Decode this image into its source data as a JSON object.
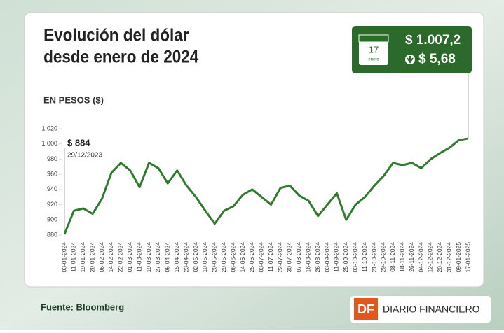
{
  "chart_data": {
    "type": "line",
    "title_lines": [
      "Evolución del dólar",
      "desde enero de 2024"
    ],
    "y_label": "EN PESOS ($)",
    "categories": [
      "03-01-2024",
      "11-01-2024",
      "19-01-2024",
      "29-01-2024",
      "06-02-2024",
      "14-02-2024",
      "22-02-2024",
      "01-03-2024",
      "11-03-2024",
      "19-03-2024",
      "27-03-2024",
      "05-04-2024",
      "15-04-2024",
      "23-04-2024",
      "02-05-2024",
      "10-05-2024",
      "20-05-2024",
      "29-05-2024",
      "06-06-2024",
      "14-06-2024",
      "25-06-2024",
      "03-07-2024",
      "11-07-2024",
      "22-07-2024",
      "30-07-2024",
      "07-08-2024",
      "16-08-2024",
      "26-08-2024",
      "03-09-2024",
      "11-09-2024",
      "25-09-2024",
      "03-10-2024",
      "11-10-2024",
      "21-10-2024",
      "29-10-2024",
      "08-11-2024",
      "18-11-2024",
      "26-11-2024",
      "04-12-2024",
      "12-12-2024",
      "20-12-2024",
      "31-12-2024",
      "09-01-2025",
      "17-01-2025"
    ],
    "values": [
      881,
      912,
      915,
      908,
      928,
      962,
      975,
      965,
      943,
      975,
      968,
      948,
      965,
      945,
      930,
      912,
      895,
      912,
      918,
      933,
      940,
      930,
      920,
      942,
      945,
      932,
      925,
      905,
      920,
      935,
      900,
      920,
      930,
      945,
      958,
      975,
      972,
      975,
      968,
      980,
      988,
      995,
      1005,
      1007.2
    ],
    "color": "#2f7a2c",
    "ylim": [
      875,
      1025
    ],
    "yticks": [
      880,
      900,
      920,
      940,
      960,
      980,
      {
        "value": 1000,
        "label": "1.000"
      },
      {
        "value": 1020,
        "label": "1.020"
      }
    ],
    "start_annotation": {
      "value_label": "$ 884",
      "date": "29/12/2023"
    },
    "callout": {
      "day": "17",
      "month": "enero",
      "price": "$ 1.007,2",
      "change": "$ 5,68"
    },
    "source": "Fuente: Bloomberg",
    "logo": {
      "mark": "DF",
      "name": "DIARIO FINANCIERO"
    }
  }
}
